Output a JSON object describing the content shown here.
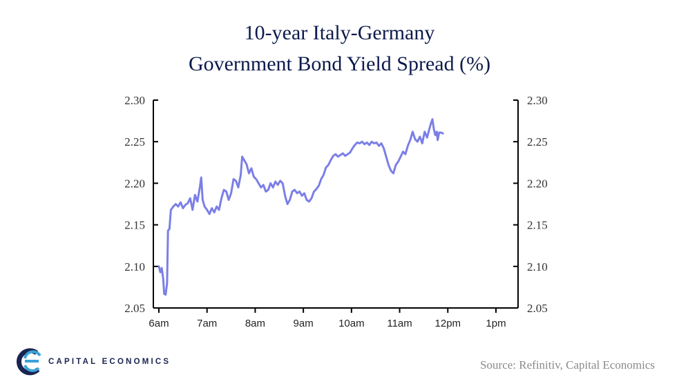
{
  "header": {
    "title_line1": "10-year Italy-Germany",
    "title_line2": "Government Bond Yield Spread (%)"
  },
  "footer": {
    "logo_text": "CAPITAL ECONOMICS",
    "source": "Source: Refinitiv, Capital Economics"
  },
  "colors": {
    "line": "#7b7fe6",
    "title": "#0c1a4b",
    "logo_dark": "#1a2450",
    "logo_light": "#3aa3d8"
  },
  "chart_data": {
    "type": "line",
    "title": "10-year Italy-Germany Government Bond Yield Spread (%)",
    "xlabel": "",
    "ylabel": "",
    "ylim": [
      2.05,
      2.3
    ],
    "yticks": [
      "2.30",
      "2.25",
      "2.20",
      "2.15",
      "2.10",
      "2.05"
    ],
    "xticks": [
      "6am",
      "7am",
      "8am",
      "9am",
      "10am",
      "11am",
      "12pm",
      "1pm"
    ],
    "xlim": [
      0,
      7
    ],
    "grid": false,
    "secondary_axis": true,
    "series": [
      {
        "name": "",
        "points": [
          [
            0.0,
            2.1
          ],
          [
            0.03,
            2.093
          ],
          [
            0.06,
            2.098
          ],
          [
            0.09,
            2.085
          ],
          [
            0.11,
            2.067
          ],
          [
            0.14,
            2.066
          ],
          [
            0.17,
            2.08
          ],
          [
            0.19,
            2.143
          ],
          [
            0.22,
            2.145
          ],
          [
            0.25,
            2.168
          ],
          [
            0.3,
            2.172
          ],
          [
            0.35,
            2.175
          ],
          [
            0.4,
            2.172
          ],
          [
            0.45,
            2.177
          ],
          [
            0.5,
            2.17
          ],
          [
            0.55,
            2.174
          ],
          [
            0.6,
            2.176
          ],
          [
            0.65,
            2.182
          ],
          [
            0.7,
            2.168
          ],
          [
            0.75,
            2.186
          ],
          [
            0.8,
            2.178
          ],
          [
            0.85,
            2.195
          ],
          [
            0.88,
            2.207
          ],
          [
            0.91,
            2.18
          ],
          [
            0.95,
            2.172
          ],
          [
            1.0,
            2.168
          ],
          [
            1.05,
            2.163
          ],
          [
            1.1,
            2.17
          ],
          [
            1.15,
            2.165
          ],
          [
            1.2,
            2.172
          ],
          [
            1.25,
            2.168
          ],
          [
            1.3,
            2.182
          ],
          [
            1.35,
            2.192
          ],
          [
            1.4,
            2.19
          ],
          [
            1.45,
            2.18
          ],
          [
            1.5,
            2.188
          ],
          [
            1.55,
            2.205
          ],
          [
            1.6,
            2.203
          ],
          [
            1.65,
            2.195
          ],
          [
            1.7,
            2.21
          ],
          [
            1.73,
            2.232
          ],
          [
            1.77,
            2.228
          ],
          [
            1.82,
            2.223
          ],
          [
            1.87,
            2.212
          ],
          [
            1.92,
            2.218
          ],
          [
            1.97,
            2.208
          ],
          [
            2.02,
            2.205
          ],
          [
            2.07,
            2.2
          ],
          [
            2.12,
            2.195
          ],
          [
            2.17,
            2.198
          ],
          [
            2.22,
            2.19
          ],
          [
            2.27,
            2.192
          ],
          [
            2.32,
            2.2
          ],
          [
            2.37,
            2.195
          ],
          [
            2.42,
            2.202
          ],
          [
            2.47,
            2.198
          ],
          [
            2.52,
            2.203
          ],
          [
            2.57,
            2.2
          ],
          [
            2.62,
            2.185
          ],
          [
            2.67,
            2.175
          ],
          [
            2.72,
            2.18
          ],
          [
            2.77,
            2.19
          ],
          [
            2.82,
            2.192
          ],
          [
            2.87,
            2.188
          ],
          [
            2.92,
            2.19
          ],
          [
            2.97,
            2.185
          ],
          [
            3.02,
            2.188
          ],
          [
            3.07,
            2.18
          ],
          [
            3.12,
            2.178
          ],
          [
            3.17,
            2.182
          ],
          [
            3.22,
            2.19
          ],
          [
            3.27,
            2.193
          ],
          [
            3.32,
            2.197
          ],
          [
            3.37,
            2.205
          ],
          [
            3.42,
            2.21
          ],
          [
            3.47,
            2.219
          ],
          [
            3.52,
            2.222
          ],
          [
            3.57,
            2.228
          ],
          [
            3.62,
            2.233
          ],
          [
            3.67,
            2.235
          ],
          [
            3.72,
            2.232
          ],
          [
            3.77,
            2.234
          ],
          [
            3.82,
            2.236
          ],
          [
            3.87,
            2.233
          ],
          [
            3.92,
            2.235
          ],
          [
            3.97,
            2.237
          ],
          [
            4.02,
            2.242
          ],
          [
            4.07,
            2.246
          ],
          [
            4.12,
            2.249
          ],
          [
            4.17,
            2.248
          ],
          [
            4.22,
            2.25
          ],
          [
            4.27,
            2.247
          ],
          [
            4.32,
            2.249
          ],
          [
            4.37,
            2.246
          ],
          [
            4.42,
            2.25
          ],
          [
            4.47,
            2.248
          ],
          [
            4.52,
            2.249
          ],
          [
            4.57,
            2.245
          ],
          [
            4.62,
            2.248
          ],
          [
            4.67,
            2.242
          ],
          [
            4.72,
            2.232
          ],
          [
            4.77,
            2.222
          ],
          [
            4.82,
            2.215
          ],
          [
            4.87,
            2.212
          ],
          [
            4.92,
            2.222
          ],
          [
            4.97,
            2.226
          ],
          [
            5.02,
            2.232
          ],
          [
            5.07,
            2.238
          ],
          [
            5.12,
            2.235
          ],
          [
            5.17,
            2.245
          ],
          [
            5.22,
            2.252
          ],
          [
            5.27,
            2.262
          ],
          [
            5.32,
            2.253
          ],
          [
            5.37,
            2.25
          ],
          [
            5.42,
            2.256
          ],
          [
            5.47,
            2.248
          ],
          [
            5.52,
            2.262
          ],
          [
            5.57,
            2.255
          ],
          [
            5.62,
            2.266
          ],
          [
            5.65,
            2.272
          ],
          [
            5.68,
            2.277
          ],
          [
            5.71,
            2.265
          ],
          [
            5.74,
            2.258
          ],
          [
            5.77,
            2.262
          ],
          [
            5.79,
            2.252
          ],
          [
            5.82,
            2.261
          ],
          [
            5.86,
            2.261
          ],
          [
            5.9,
            2.26
          ]
        ]
      }
    ]
  }
}
